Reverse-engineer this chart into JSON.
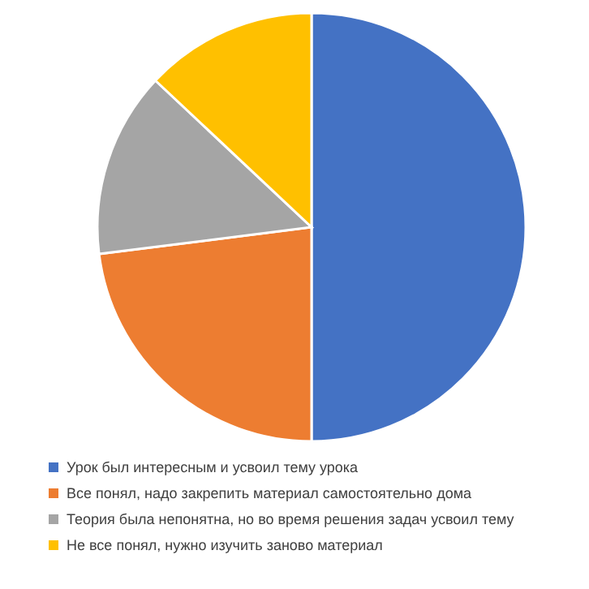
{
  "chart_data": {
    "type": "pie",
    "categories": [
      "Урок был интересным и усвоил тему урока",
      "Все понял, надо закрепить материал самостоятельно дома",
      "Теория была непонятна, но во время решения задач усвоил тему",
      "Не все понял, нужно изучить заново материал"
    ],
    "values": [
      50,
      23,
      14,
      13
    ],
    "colors": [
      "#4472c4",
      "#ed7d31",
      "#a5a5a5",
      "#ffc000"
    ],
    "legend": "bottom"
  }
}
